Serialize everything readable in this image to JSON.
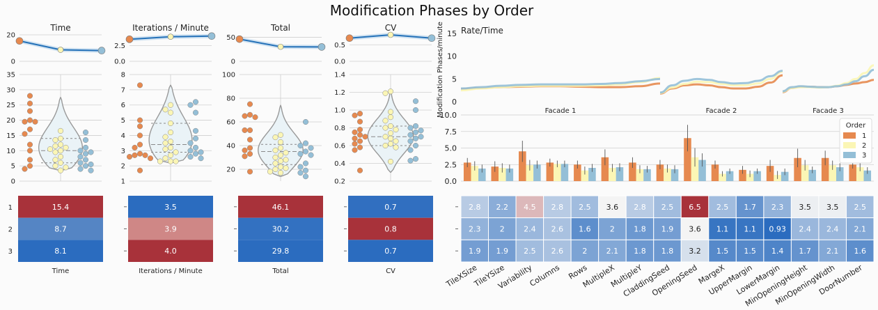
{
  "title": "Modification Phases by Order",
  "colors": {
    "o1": "#e6894f",
    "o2": "#fbf6b5",
    "o3": "#94bfd7",
    "line": "#2471b8",
    "red": "#a8323a",
    "blue": "#2b6cbf"
  },
  "chart_data": [
    {
      "type": "line",
      "title": "Time",
      "x": [
        1,
        2,
        3
      ],
      "y": [
        15.4,
        8.7,
        8.1
      ],
      "yticks": [
        "0",
        "20"
      ],
      "ylim": [
        0,
        20
      ]
    },
    {
      "type": "line",
      "title": "Iterations / Minute",
      "x": [
        1,
        2,
        3
      ],
      "y": [
        3.5,
        3.9,
        4.0
      ],
      "yticks": [
        "0.0",
        "2.5"
      ],
      "ylim": [
        0,
        4.2
      ]
    },
    {
      "type": "line",
      "title": "Total",
      "x": [
        1,
        2,
        3
      ],
      "y": [
        46.1,
        30.2,
        29.8
      ],
      "yticks": [
        "0",
        "50"
      ],
      "ylim": [
        0,
        55
      ]
    },
    {
      "type": "line",
      "title": "CV",
      "x": [
        1,
        2,
        3
      ],
      "y": [
        0.7,
        0.8,
        0.7
      ],
      "yticks": [
        "0.0",
        "0.5"
      ],
      "ylim": [
        0,
        0.8
      ]
    },
    {
      "type": "scatter",
      "metric": "Time",
      "yticks": [
        "0",
        "5",
        "10",
        "15",
        "20",
        "25",
        "30",
        "35"
      ],
      "ylim": [
        0,
        35
      ],
      "violin": {
        "min": 3.5,
        "max": 27.5,
        "q1": 6,
        "median": 10,
        "q3": 14
      },
      "series": [
        {
          "order": "1",
          "values": [
            28,
            25.5,
            23,
            20,
            19.5,
            19.5,
            17,
            15.5,
            12,
            10,
            7,
            5,
            4
          ]
        },
        {
          "order": "2",
          "values": [
            16.5,
            14,
            13.5,
            12,
            11.5,
            11,
            10.5,
            10,
            9.5,
            8,
            7,
            6,
            5,
            4.5,
            3.5
          ]
        },
        {
          "order": "3",
          "values": [
            16,
            13.5,
            11,
            10,
            9.5,
            9,
            8,
            7,
            6,
            5.5,
            5,
            4,
            3.5
          ]
        }
      ]
    },
    {
      "type": "scatter",
      "metric": "Iterations / Minute",
      "yticks": [
        "1",
        "2",
        "3",
        "4",
        "5",
        "6",
        "7",
        "8"
      ],
      "ylim": [
        1,
        8
      ],
      "violin": {
        "min": 2.2,
        "max": 7.3,
        "q1": 2.9,
        "median": 3.4,
        "q3": 4.8
      },
      "series": [
        {
          "order": "1",
          "values": [
            7.3,
            5,
            4.6,
            4,
            3.4,
            3.2,
            2.8,
            2.7,
            2.7,
            2.6,
            2.5,
            1.7
          ]
        },
        {
          "order": "2",
          "values": [
            6,
            5.7,
            5.5,
            4.8,
            4.2,
            3.9,
            3.6,
            3.5,
            3.2,
            3.1,
            2.9,
            2.7,
            2.5,
            2.3,
            2.3,
            2.3
          ]
        },
        {
          "order": "3",
          "values": [
            6.2,
            6,
            5.5,
            4.3,
            3.8,
            3.5,
            3.2,
            3,
            2.9,
            2.8,
            2.6,
            2.5
          ]
        }
      ]
    },
    {
      "type": "scatter",
      "metric": "Total",
      "yticks": [
        "20",
        "40",
        "60",
        "80",
        "100"
      ],
      "ylim": [
        10,
        100
      ],
      "violin": {
        "min": 14,
        "max": 74,
        "q1": 24,
        "median": 35,
        "q3": 41
      },
      "series": [
        {
          "order": "1",
          "values": [
            75,
            66,
            65,
            64,
            53,
            53,
            45,
            38,
            36,
            33,
            31,
            18
          ]
        },
        {
          "order": "2",
          "values": [
            49,
            47,
            43,
            38,
            36,
            34,
            32,
            30,
            28,
            27,
            25,
            22,
            21,
            20,
            18,
            17
          ]
        },
        {
          "order": "3",
          "values": [
            60,
            42,
            40,
            38,
            35,
            33,
            32,
            25,
            22,
            19,
            17,
            14
          ]
        }
      ]
    },
    {
      "type": "scatter",
      "metric": "CV",
      "yticks": [
        "0.2",
        "0.4",
        "0.6",
        "0.8",
        "1.0",
        "1.2",
        "1.4"
      ],
      "ylim": [
        0.2,
        1.4
      ],
      "violin": {
        "min": 0.3,
        "max": 1.22,
        "q1": 0.6,
        "median": 0.7,
        "q3": 0.82
      },
      "series": [
        {
          "order": "1",
          "values": [
            0.96,
            0.94,
            0.87,
            0.78,
            0.75,
            0.72,
            0.7,
            0.68,
            0.65,
            0.62,
            0.58,
            0.55,
            0.32
          ]
        },
        {
          "order": "2",
          "values": [
            1.21,
            1.19,
            0.98,
            0.92,
            0.88,
            0.82,
            0.8,
            0.78,
            0.74,
            0.7,
            0.68,
            0.65,
            0.62,
            0.6,
            0.58,
            0.42
          ]
        },
        {
          "order": "3",
          "values": [
            1.1,
            1.0,
            0.82,
            0.8,
            0.77,
            0.75,
            0.72,
            0.7,
            0.68,
            0.65,
            0.6,
            0.55,
            0.45,
            0.43
          ]
        }
      ]
    },
    {
      "type": "heatmap",
      "xlabel": "Time",
      "rows": [
        "1",
        "2",
        "3"
      ],
      "values": [
        15.4,
        8.7,
        8.1
      ],
      "labels": [
        "15.4",
        "8.7",
        "8.1"
      ],
      "colors": [
        "#a8323a",
        "#5585c4",
        "#2b6cbf"
      ]
    },
    {
      "type": "heatmap",
      "xlabel": "Iterations / Minute",
      "rows": [
        "1",
        "2",
        "3"
      ],
      "values": [
        3.5,
        3.9,
        4.0
      ],
      "labels": [
        "3.5",
        "3.9",
        "4.0"
      ],
      "colors": [
        "#2b6cbf",
        "#cf8786",
        "#a8323a"
      ]
    },
    {
      "type": "heatmap",
      "xlabel": "Total",
      "rows": [
        "1",
        "2",
        "3"
      ],
      "values": [
        46.1,
        30.2,
        29.8
      ],
      "labels": [
        "46.1",
        "30.2",
        "29.8"
      ],
      "colors": [
        "#a8323a",
        "#3371c1",
        "#2b6cbf"
      ]
    },
    {
      "type": "heatmap",
      "xlabel": "CV",
      "rows": [
        "1",
        "2",
        "3"
      ],
      "values": [
        0.7,
        0.8,
        0.7
      ],
      "labels": [
        "0.7",
        "0.8",
        "0.7"
      ],
      "colors": [
        "#316fc0",
        "#a8323a",
        "#2b6cbf"
      ]
    },
    {
      "type": "line",
      "title": "Rate/Time",
      "ylabel": "Modification Phases/minute",
      "yticks": [
        "0",
        "5",
        "10",
        "15"
      ],
      "ylim": [
        0,
        15
      ],
      "facets": [
        "Facade 1",
        "Facade 2",
        "Facade 3"
      ],
      "series": [
        {
          "order": "1",
          "facets": [
            [
              2.8,
              3.0,
              3.2,
              3.3,
              3.4,
              3.4,
              3.3,
              3.2,
              3.2,
              3.4,
              4.0
            ],
            [
              1.8,
              2.9,
              3.6,
              3.8,
              3.6,
              3.2,
              2.9,
              2.9,
              3.3,
              4.2,
              5.8
            ],
            [
              2.1,
              3.0,
              3.3,
              3.3,
              3.2,
              3.2,
              3.4,
              3.7,
              4.0,
              4.3,
              4.8
            ]
          ]
        },
        {
          "order": "2",
          "facets": [
            [
              2.5,
              2.9,
              3.2,
              3.4,
              3.5,
              3.5,
              3.5,
              3.6,
              3.8,
              4.3,
              5.2
            ],
            [
              1.9,
              3.1,
              3.9,
              4.4,
              4.3,
              3.9,
              3.6,
              3.6,
              4.0,
              5.0,
              6.6
            ],
            [
              2.2,
              3.0,
              3.2,
              3.2,
              3.1,
              3.2,
              3.5,
              4.1,
              5.0,
              6.3,
              8.0
            ]
          ]
        },
        {
          "order": "3",
          "facets": [
            [
              2.9,
              3.2,
              3.5,
              3.7,
              3.8,
              3.8,
              3.8,
              3.9,
              4.1,
              4.5,
              5.0
            ],
            [
              2.0,
              3.6,
              4.6,
              5.0,
              4.8,
              4.3,
              4.0,
              4.1,
              4.6,
              5.6,
              6.8
            ],
            [
              2.3,
              3.2,
              3.4,
              3.3,
              3.2,
              3.2,
              3.4,
              3.8,
              4.5,
              5.6,
              7.0
            ]
          ]
        }
      ]
    },
    {
      "type": "bar",
      "categories": [
        "TileXSize",
        "TileYSize",
        "Variability",
        "Columns",
        "Rows",
        "MultipleX",
        "MultipleY",
        "CladdingSeed",
        "OpeningSeed",
        "MargeX",
        "UpperMargin",
        "LowerMargin",
        "MinOpeningHeight",
        "MinOpeningWidth",
        "DoorNumber"
      ],
      "yticks": [
        "0.0",
        "2.5",
        "5.0",
        "7.5",
        "10.0"
      ],
      "ylim": [
        0,
        10
      ],
      "legend_title": "Order",
      "legend": [
        "1",
        "2",
        "3"
      ],
      "legend_position": "right",
      "series": [
        {
          "name": "1",
          "values": [
            2.8,
            2.2,
            4.5,
            2.8,
            2.5,
            3.6,
            2.8,
            2.5,
            6.5,
            2.5,
            1.7,
            2.3,
            3.5,
            3.5,
            2.5
          ]
        },
        {
          "name": "2",
          "values": [
            2.3,
            2.0,
            2.4,
            2.6,
            1.6,
            2.0,
            1.8,
            1.9,
            3.6,
            1.1,
            1.1,
            0.93,
            2.4,
            2.4,
            2.1
          ]
        },
        {
          "name": "3",
          "values": [
            1.9,
            1.9,
            2.5,
            2.6,
            2.0,
            2.1,
            1.8,
            1.8,
            3.2,
            1.5,
            1.5,
            1.4,
            1.7,
            2.1,
            1.6
          ]
        }
      ],
      "errors": [
        [
          0.7,
          0.8,
          1.6,
          0.6,
          0.6,
          1.2,
          0.8,
          0.7,
          2.0,
          0.6,
          0.6,
          0.9,
          1.4,
          1.1,
          0.6
        ],
        [
          0.7,
          0.7,
          0.8,
          0.5,
          0.6,
          0.6,
          0.6,
          0.6,
          1.4,
          0.4,
          0.5,
          0.6,
          0.8,
          0.7,
          0.6
        ],
        [
          0.6,
          0.6,
          0.6,
          0.5,
          0.6,
          0.6,
          0.5,
          0.6,
          1.0,
          0.4,
          0.4,
          0.5,
          0.5,
          0.6,
          0.5
        ]
      ]
    },
    {
      "type": "heatmap",
      "columns": [
        "TileXSize",
        "TileYSize",
        "Variability",
        "Columns",
        "Rows",
        "MultipleX",
        "MultipleY",
        "CladdingSeed",
        "OpeningSeed",
        "MargeX",
        "UpperMargin",
        "LowerMargin",
        "MinOpeningHeight",
        "MinOpeningWidth",
        "DoorNumber"
      ],
      "rows": [
        "1",
        "2",
        "3"
      ],
      "labels": [
        [
          "2.8",
          "2.2",
          "4.5",
          "2.8",
          "2.5",
          "3.6",
          "2.8",
          "2.5",
          "6.5",
          "2.5",
          "1.7",
          "2.3",
          "3.5",
          "3.5",
          "2.5"
        ],
        [
          "2.3",
          "2",
          "2.4",
          "2.6",
          "1.6",
          "2",
          "1.8",
          "1.9",
          "3.6",
          "1.1",
          "1.1",
          "0.93",
          "2.4",
          "2.4",
          "2.1"
        ],
        [
          "1.9",
          "1.9",
          "2.5",
          "2.6",
          "2",
          "2.1",
          "1.8",
          "1.8",
          "3.2",
          "1.5",
          "1.5",
          "1.4",
          "1.7",
          "2.1",
          "1.6"
        ]
      ],
      "values": [
        [
          2.8,
          2.2,
          4.5,
          2.8,
          2.5,
          3.6,
          2.8,
          2.5,
          6.5,
          2.5,
          1.7,
          2.3,
          3.5,
          3.5,
          2.5
        ],
        [
          2.3,
          2.0,
          2.4,
          2.6,
          1.6,
          2.0,
          1.8,
          1.9,
          3.6,
          1.1,
          1.1,
          0.93,
          2.4,
          2.4,
          2.1
        ],
        [
          1.9,
          1.9,
          2.5,
          2.6,
          2.0,
          2.1,
          1.8,
          1.8,
          3.2,
          1.5,
          1.5,
          1.4,
          1.7,
          2.1,
          1.6
        ]
      ]
    }
  ]
}
